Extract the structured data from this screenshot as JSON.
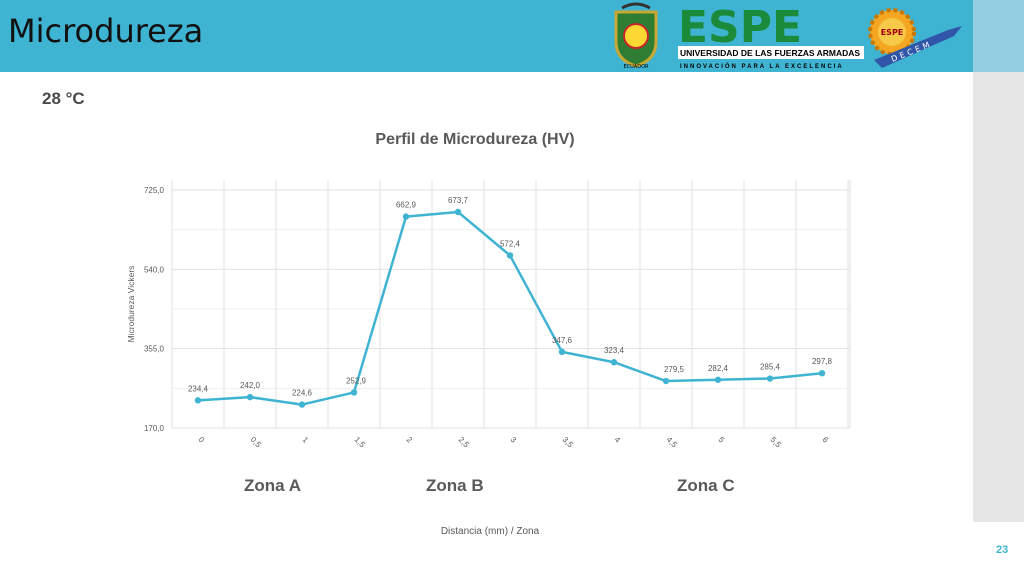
{
  "slide": {
    "title": "Microdureza",
    "temperature": "28 °C",
    "page_number": "23"
  },
  "logo": {
    "brand": "ESPE",
    "university": "UNIVERSIDAD DE LAS FUERZAS ARMADAS",
    "motto": "INNOVACIÓN PARA LA EXCELENCIA",
    "badge_text": "ESPE",
    "department": "DECEM",
    "crest_label": "ECUADOR"
  },
  "zones": [
    "Zona A",
    "Zona B",
    "Zona C"
  ],
  "chart_data": {
    "type": "line",
    "title": "Perfil de Microdureza (HV)",
    "xlabel": "Distancia (mm) / Zona",
    "ylabel": "Microdureza Vickers",
    "categories": [
      "0",
      "0,5",
      "1",
      "1,5",
      "2",
      "2,5",
      "3",
      "3,5",
      "4",
      "4,5",
      "5",
      "5,5",
      "6"
    ],
    "values": [
      234.4,
      242.0,
      224.6,
      252.9,
      662.9,
      673.7,
      572.4,
      347.6,
      323.4,
      279.5,
      282.4,
      285.4,
      297.8
    ],
    "value_labels": [
      "234,4",
      "242,0",
      "224,6",
      "252,9",
      "662,9",
      "673,7",
      "572,4",
      "347,6",
      "323,4",
      "279,5",
      "282,4",
      "285,4",
      "297,8"
    ],
    "yticks": [
      "170,0",
      "355,0",
      "540,0",
      "725,0"
    ],
    "ytick_values": [
      170,
      355,
      540,
      725
    ],
    "ylim": [
      170,
      725
    ],
    "grid": true,
    "legend": "none",
    "line_color": "#3fb4d2",
    "grid_color": "#e2e2e2",
    "text_color": "#595959"
  }
}
